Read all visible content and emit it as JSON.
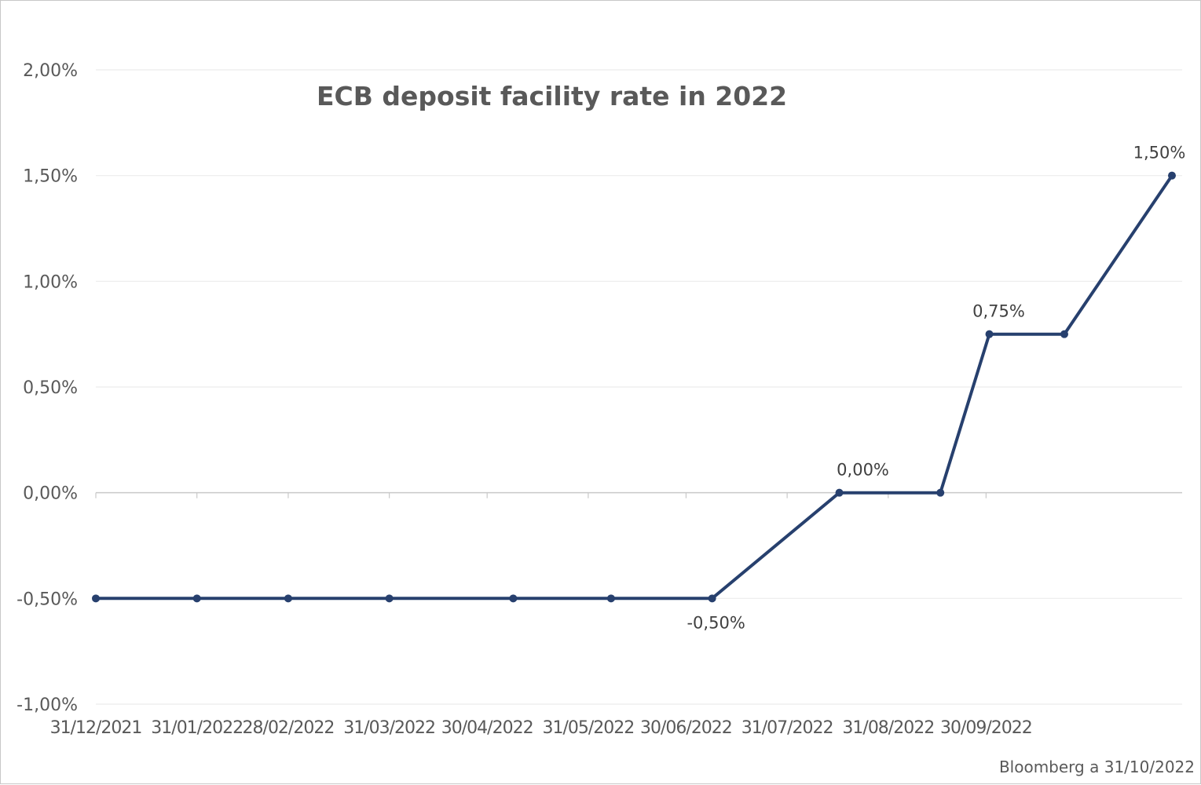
{
  "chart_data": {
    "type": "line",
    "title": "ECB deposit facility rate in 2022",
    "source": "Bloomberg a 31/10/2022",
    "ylim": [
      -1.0,
      2.0
    ],
    "y_ticks": [
      {
        "value": 2.0,
        "label": "2,00%"
      },
      {
        "value": 1.5,
        "label": "1,50%"
      },
      {
        "value": 1.0,
        "label": "1,00%"
      },
      {
        "value": 0.5,
        "label": "0,50%"
      },
      {
        "value": 0.0,
        "label": "0,00%"
      },
      {
        "value": -0.5,
        "label": "-0,50%"
      },
      {
        "value": -1.0,
        "label": "-1,00%"
      }
    ],
    "x_ticks": [
      "31/12/2021",
      "31/01/2022",
      "28/02/2022",
      "31/03/2022",
      "30/04/2022",
      "31/05/2022",
      "30/06/2022",
      "31/07/2022",
      "31/08/2022",
      "30/09/2022"
    ],
    "grid": true,
    "line_color": "#27406e",
    "series": [
      {
        "points": [
          {
            "x": "2021-12-31",
            "y": -0.5
          },
          {
            "x": "2022-01-31",
            "y": -0.5
          },
          {
            "x": "2022-02-28",
            "y": -0.5
          },
          {
            "x": "2022-03-31",
            "y": -0.5
          },
          {
            "x": "2022-05-08",
            "y": -0.5
          },
          {
            "x": "2022-06-07",
            "y": -0.5
          },
          {
            "x": "2022-07-08",
            "y": -0.5
          },
          {
            "x": "2022-08-16",
            "y": 0.0
          },
          {
            "x": "2022-09-16",
            "y": 0.0
          },
          {
            "x": "2022-10-01",
            "y": 0.75
          },
          {
            "x": "2022-10-24",
            "y": 0.75
          },
          {
            "x": "2022-11-26",
            "y": 1.5
          }
        ]
      }
    ],
    "data_labels": [
      {
        "point_index": 6,
        "text": "-0,50%",
        "position": "below"
      },
      {
        "point_index": 7,
        "text": "0,00%",
        "position": "above"
      },
      {
        "point_index": 9,
        "text": "0,75%",
        "position": "above"
      },
      {
        "point_index": 11,
        "text": "1,50%",
        "position": "above"
      }
    ]
  }
}
